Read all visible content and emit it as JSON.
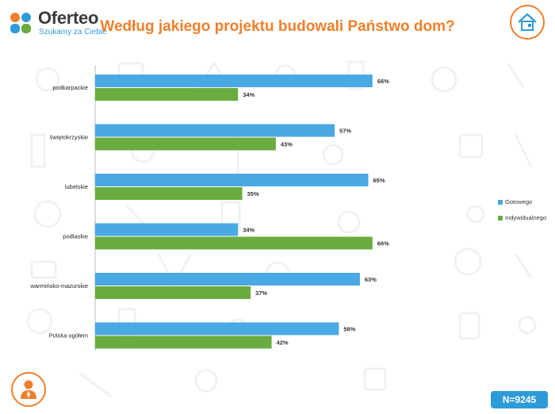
{
  "header": {
    "logo_name": "Oferteo",
    "logo_tagline": "Szukamy za Ciebie",
    "title": "Według jakiego projektu budowali Państwo dom?"
  },
  "colors": {
    "accent": "#f07f2a",
    "brand_blue": "#2d9bd9",
    "series_gotowego": "#4aa8e2",
    "series_indywidualnego": "#6aac3f"
  },
  "icons": {
    "logo": "oferteo-logo-icon",
    "house": "house-icon",
    "person": "person-icon"
  },
  "chart_data": {
    "type": "bar",
    "orientation": "horizontal",
    "categories": [
      "podkarpackie",
      "świętokrzyskie",
      "lubelskie",
      "podlaskie",
      "warmińsko-mazurskie",
      "Polska ogółem"
    ],
    "series": [
      {
        "name": "Gotowego",
        "values": [
          66,
          57,
          65,
          34,
          63,
          58
        ],
        "labels": [
          "66%",
          "57%",
          "65%",
          "34%",
          "63%",
          "58%"
        ]
      },
      {
        "name": "Indywidualnego",
        "values": [
          34,
          43,
          35,
          66,
          37,
          42
        ],
        "labels": [
          "34%",
          "43%",
          "35%",
          "66%",
          "37%",
          "42%"
        ]
      }
    ],
    "xlim": [
      0,
      100
    ],
    "grid": false,
    "legend_position": "right"
  },
  "legend": {
    "items": [
      {
        "label": "Gotowego",
        "color": "#4aa8e2"
      },
      {
        "label": "Indywidualnego",
        "color": "#6aac3f"
      }
    ]
  },
  "footer": {
    "sample_size": "N=9245"
  }
}
